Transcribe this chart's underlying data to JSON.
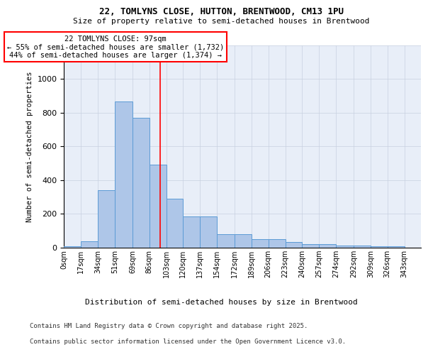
{
  "title_line1": "22, TOMLYNS CLOSE, HUTTON, BRENTWOOD, CM13 1PU",
  "title_line2": "Size of property relative to semi-detached houses in Brentwood",
  "xlabel": "Distribution of semi-detached houses by size in Brentwood",
  "ylabel": "Number of semi-detached properties",
  "footnote_line1": "Contains HM Land Registry data © Crown copyright and database right 2025.",
  "footnote_line2": "Contains public sector information licensed under the Open Government Licence v3.0.",
  "bin_labels": [
    "0sqm",
    "17sqm",
    "34sqm",
    "51sqm",
    "69sqm",
    "86sqm",
    "103sqm",
    "120sqm",
    "137sqm",
    "154sqm",
    "172sqm",
    "189sqm",
    "206sqm",
    "223sqm",
    "240sqm",
    "257sqm",
    "274sqm",
    "292sqm",
    "309sqm",
    "326sqm",
    "343sqm"
  ],
  "bar_heights": [
    8,
    35,
    340,
    865,
    770,
    490,
    290,
    185,
    185,
    80,
    80,
    47,
    47,
    30,
    20,
    20,
    10,
    10,
    5,
    5,
    0
  ],
  "bar_color": "#aec6e8",
  "bar_edge_color": "#5b9bd5",
  "grid_color": "#c8d0e0",
  "background_color": "#e8eef8",
  "ann_line1": "22 TOMLYNS CLOSE: 97sqm",
  "ann_line2": "← 55% of semi-detached houses are smaller (1,732)",
  "ann_line3": "44% of semi-detached houses are larger (1,374) →",
  "property_size": 97,
  "ylim_max": 1200,
  "yticks": [
    0,
    200,
    400,
    600,
    800,
    1000,
    1200
  ],
  "bin_edges": [
    0,
    17,
    34,
    51,
    69,
    86,
    103,
    120,
    137,
    154,
    172,
    189,
    206,
    223,
    240,
    257,
    274,
    292,
    309,
    326,
    343,
    360
  ]
}
